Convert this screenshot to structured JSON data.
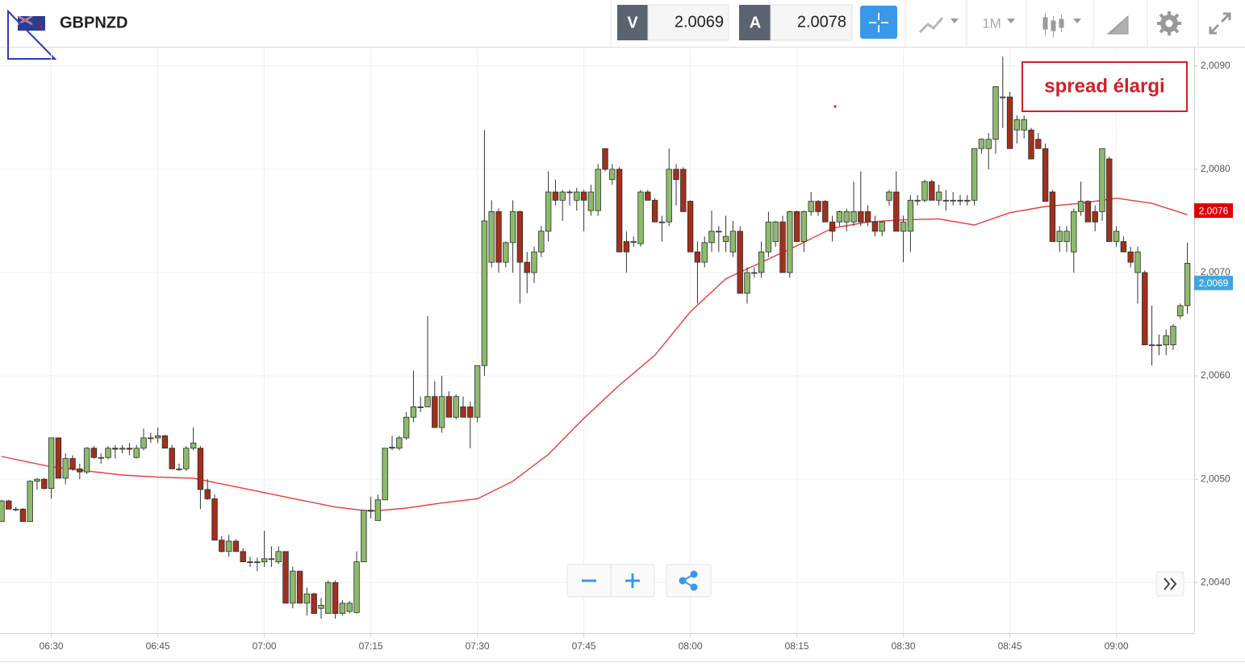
{
  "header": {
    "symbol": "GBPNZD",
    "bid_label": "V",
    "bid": "2.0069",
    "ask_label": "A",
    "ask": "2.0078",
    "timeframe": "1M"
  },
  "chart_data": {
    "type": "candlestick",
    "x": [
      "06:23",
      "06:24",
      "06:25",
      "06:26",
      "06:27",
      "06:28",
      "06:29",
      "06:30",
      "06:31",
      "06:32",
      "06:33",
      "06:34",
      "06:35",
      "06:36",
      "06:37",
      "06:38",
      "06:39",
      "06:40",
      "06:41",
      "06:42",
      "06:43",
      "06:44",
      "06:45",
      "06:46",
      "06:47",
      "06:48",
      "06:49",
      "06:50",
      "06:51",
      "06:52",
      "06:53",
      "06:54",
      "06:55",
      "06:56",
      "06:57",
      "06:58",
      "06:59",
      "07:00",
      "07:01",
      "07:02",
      "07:03",
      "07:04",
      "07:05",
      "07:06",
      "07:07",
      "07:08",
      "07:09",
      "07:10",
      "07:11",
      "07:12",
      "07:13",
      "07:14",
      "07:15",
      "07:16",
      "07:17",
      "07:18",
      "07:19",
      "07:20",
      "07:21",
      "07:22",
      "07:23",
      "07:24",
      "07:25",
      "07:26",
      "07:27",
      "07:28",
      "07:29",
      "07:30",
      "07:31",
      "07:32",
      "07:33",
      "07:34",
      "07:35",
      "07:36",
      "07:37",
      "07:38",
      "07:39",
      "07:40",
      "07:41",
      "07:42",
      "07:43",
      "07:44",
      "07:45",
      "07:46",
      "07:47",
      "07:48",
      "07:49",
      "07:50",
      "07:51",
      "07:52",
      "07:53",
      "07:54",
      "07:55",
      "07:56",
      "07:57",
      "07:58",
      "07:59",
      "08:00",
      "08:01",
      "08:02",
      "08:03",
      "08:04",
      "08:05",
      "08:06",
      "08:07",
      "08:08",
      "08:09",
      "08:10",
      "08:11",
      "08:12",
      "08:13",
      "08:14",
      "08:15",
      "08:16",
      "08:17",
      "08:18",
      "08:19",
      "08:20",
      "08:21",
      "08:22",
      "08:23",
      "08:24",
      "08:25",
      "08:26",
      "08:27",
      "08:28",
      "08:29",
      "08:30",
      "08:31",
      "08:32",
      "08:33",
      "08:34",
      "08:35",
      "08:36",
      "08:37",
      "08:38",
      "08:39",
      "08:40",
      "08:41",
      "08:42",
      "08:43",
      "08:44",
      "08:45",
      "08:46",
      "08:47",
      "08:48",
      "08:49",
      "08:50",
      "08:51",
      "08:52",
      "08:53",
      "08:54",
      "08:55",
      "08:56",
      "08:57",
      "08:58",
      "08:59",
      "09:00",
      "09:01",
      "09:02",
      "09:03",
      "09:04",
      "09:05",
      "09:06",
      "09:07",
      "09:08",
      "09:09",
      "09:10"
    ],
    "open": [
      2.00459,
      2.00479,
      2.00471,
      2.00471,
      2.00459,
      2.00498,
      2.005,
      2.00491,
      2.0054,
      2.00501,
      2.0052,
      2.0051,
      2.00507,
      2.0053,
      2.00521,
      2.00521,
      2.0053,
      2.00529,
      2.0053,
      2.00521,
      2.0053,
      2.0054,
      2.0054,
      2.00542,
      2.0053,
      2.0051,
      2.0051,
      2.0053,
      2.0053,
      2.0049,
      2.00481,
      2.00441,
      2.0043,
      2.0044,
      2.0043,
      2.0042,
      2.0042,
      2.0042,
      2.00423,
      2.0042,
      2.0043,
      2.0038,
      2.00411,
      2.0038,
      2.00389,
      2.00375,
      2.0037,
      2.004,
      2.0037,
      2.00372,
      2.00371,
      2.0042,
      2.0047,
      2.0046,
      2.0048,
      2.0053,
      2.0053,
      2.0054,
      2.0056,
      2.0057,
      2.0057,
      2.0058,
      2.0055,
      2.0058,
      2.0056,
      2.0057,
      2.0057,
      2.0056,
      2.0061,
      2.0071,
      2.00759,
      2.0071,
      2.00729,
      2.00759,
      2.0071,
      2.007,
      2.0072,
      2.0074,
      2.00778,
      2.0077,
      2.00778,
      2.0077,
      2.00778,
      2.0076,
      2.0076,
      2.0082,
      2.0079,
      2.008,
      2.0073,
      2.0073,
      2.00728,
      2.00778,
      2.0077,
      2.00749,
      2.00749,
      2.008,
      2.008,
      2.00769,
      2.0072,
      2.0071,
      2.00729,
      2.0074,
      2.0073,
      2.0072,
      2.0074,
      2.0068,
      2.007,
      2.007,
      2.0072,
      2.0073,
      2.00749,
      2.007,
      2.00759,
      2.0073,
      2.00759,
      2.00769,
      2.00769,
      2.00749,
      2.00749,
      2.00749,
      2.00749,
      2.00759,
      2.00759,
      2.00749,
      2.0074,
      2.0077,
      2.00778,
      2.0074,
      2.0074,
      2.0077,
      2.0077,
      2.00788,
      2.0077,
      2.0077,
      2.0077,
      2.0077,
      2.0077,
      2.0077,
      2.0082,
      2.0082,
      2.00829,
      2.0087,
      2.0087,
      2.00838,
      2.00838,
      2.00838,
      2.00829,
      2.0082,
      2.00778,
      2.0073,
      2.0073,
      2.0072,
      2.00759,
      2.00769,
      2.00759,
      2.00759,
      2.0081,
      2.0073,
      2.0073,
      2.0072,
      2.007,
      2.007,
      2.0063,
      2.0063,
      2.0063,
      2.0063,
      2.00658,
      2.00668
    ],
    "high": [
      2.0048,
      2.0048,
      2.00473,
      2.00472,
      2.00499,
      2.00501,
      2.00501,
      2.0054,
      2.0054,
      2.00525,
      2.00523,
      2.00515,
      2.00531,
      2.00532,
      2.00525,
      2.00532,
      2.00533,
      2.00533,
      2.00535,
      2.00533,
      2.00549,
      2.00545,
      2.0055,
      2.00543,
      2.00533,
      2.00515,
      2.00532,
      2.0055,
      2.00532,
      2.005,
      2.00485,
      2.00445,
      2.00446,
      2.00442,
      2.00433,
      2.00425,
      2.00424,
      2.0045,
      2.00435,
      2.00435,
      2.0043,
      2.00415,
      2.00411,
      2.00395,
      2.0039,
      2.00385,
      2.00402,
      2.00402,
      2.00383,
      2.00382,
      2.0043,
      2.0047,
      2.00483,
      2.00485,
      2.0053,
      2.00542,
      2.00542,
      2.00565,
      2.00605,
      2.0058,
      2.00658,
      2.00595,
      2.006,
      2.00585,
      2.00582,
      2.0058,
      2.00575,
      2.0061,
      2.00838,
      2.0077,
      2.00762,
      2.0073,
      2.0077,
      2.0076,
      2.0072,
      2.00725,
      2.00745,
      2.00798,
      2.0079,
      2.0078,
      2.0078,
      2.00782,
      2.0078,
      2.00785,
      2.00805,
      2.0082,
      2.00805,
      2.00802,
      2.0074,
      2.00735,
      2.0078,
      2.0078,
      2.00772,
      2.00755,
      2.0082,
      2.00805,
      2.00802,
      2.0077,
      2.0073,
      2.00735,
      2.0076,
      2.00745,
      2.00755,
      2.0075,
      2.00745,
      2.00705,
      2.00705,
      2.0073,
      2.00759,
      2.0075,
      2.00755,
      2.0076,
      2.0076,
      2.0076,
      2.00778,
      2.0077,
      2.0077,
      2.00755,
      2.0076,
      2.00762,
      2.00788,
      2.00798,
      2.00765,
      2.00755,
      2.0075,
      2.0078,
      2.00798,
      2.00755,
      2.00775,
      2.00775,
      2.0079,
      2.0079,
      2.00785,
      2.0078,
      2.00778,
      2.00775,
      2.00775,
      2.0082,
      2.0083,
      2.00835,
      2.0088,
      2.00909,
      2.00875,
      2.00852,
      2.00852,
      2.0084,
      2.00835,
      2.00825,
      2.0078,
      2.00745,
      2.00745,
      2.00762,
      2.00788,
      2.0077,
      2.00765,
      2.0082,
      2.00812,
      2.00745,
      2.00735,
      2.00725,
      2.00725,
      2.00702,
      2.00668,
      2.0064,
      2.00645,
      2.0065,
      2.0067,
      2.00729
    ],
    "low": [
      2.00459,
      2.00471,
      2.00469,
      2.00459,
      2.00459,
      2.0049,
      2.0049,
      2.00481,
      2.00501,
      2.00495,
      2.00508,
      2.005,
      2.00505,
      2.0052,
      2.00515,
      2.00519,
      2.0052,
      2.00525,
      2.00523,
      2.0052,
      2.00528,
      2.00535,
      2.00535,
      2.0053,
      2.0051,
      2.00508,
      2.00508,
      2.00528,
      2.00471,
      2.0048,
      2.00441,
      2.00429,
      2.00425,
      2.0043,
      2.0042,
      2.00415,
      2.00411,
      2.00415,
      2.00415,
      2.00418,
      2.0038,
      2.00375,
      2.0038,
      2.00368,
      2.0037,
      2.00365,
      2.0037,
      2.00365,
      2.00368,
      2.0037,
      2.0037,
      2.0042,
      2.00462,
      2.0046,
      2.0048,
      2.00528,
      2.00528,
      2.00538,
      2.00555,
      2.00565,
      2.0057,
      2.0055,
      2.00545,
      2.0056,
      2.00558,
      2.0056,
      2.0053,
      2.00555,
      2.006,
      2.00705,
      2.007,
      2.00705,
      2.007,
      2.0067,
      2.0068,
      2.0069,
      2.00715,
      2.0073,
      2.00765,
      2.0075,
      2.00765,
      2.0076,
      2.0074,
      2.00755,
      2.00755,
      2.00798,
      2.00785,
      2.0072,
      2.007,
      2.00725,
      2.00725,
      2.0077,
      2.00749,
      2.0073,
      2.00745,
      2.00765,
      2.00759,
      2.0072,
      2.0067,
      2.00705,
      2.0072,
      2.0072,
      2.0072,
      2.00715,
      2.0068,
      2.0067,
      2.00695,
      2.00695,
      2.00715,
      2.00725,
      2.007,
      2.00695,
      2.0073,
      2.0072,
      2.00755,
      2.00755,
      2.00749,
      2.0073,
      2.00745,
      2.0074,
      2.00745,
      2.00745,
      2.00745,
      2.00735,
      2.00735,
      2.00765,
      2.0074,
      2.0071,
      2.0072,
      2.00765,
      2.00768,
      2.0077,
      2.00765,
      2.0076,
      2.00765,
      2.00765,
      2.00765,
      2.00765,
      2.00815,
      2.008,
      2.00815,
      2.0084,
      2.0082,
      2.00825,
      2.0083,
      2.0081,
      2.0082,
      2.00769,
      2.0073,
      2.0072,
      2.0072,
      2.007,
      2.00755,
      2.00749,
      2.0074,
      2.0075,
      2.0073,
      2.00725,
      2.0072,
      2.00705,
      2.0067,
      2.0063,
      2.0061,
      2.0062,
      2.0062,
      2.00625,
      2.00655,
      2.0066
    ],
    "close": [
      2.00479,
      2.00471,
      2.00471,
      2.00459,
      2.00498,
      2.005,
      2.00491,
      2.0054,
      2.00501,
      2.0052,
      2.0051,
      2.00507,
      2.0053,
      2.00521,
      2.00521,
      2.0053,
      2.00529,
      2.0053,
      2.00529,
      2.0053,
      2.0054,
      2.0054,
      2.00542,
      2.0053,
      2.0051,
      2.0051,
      2.0053,
      2.00535,
      2.0049,
      2.00481,
      2.00441,
      2.0043,
      2.0044,
      2.0043,
      2.0042,
      2.0042,
      2.0042,
      2.00423,
      2.00423,
      2.0043,
      2.0038,
      2.00411,
      2.0038,
      2.00389,
      2.0037,
      2.00378,
      2.004,
      2.0037,
      2.0038,
      2.0038,
      2.0042,
      2.0047,
      2.0047,
      2.0048,
      2.0053,
      2.00531,
      2.0054,
      2.0056,
      2.0057,
      2.0057,
      2.0058,
      2.0055,
      2.0058,
      2.0056,
      2.0058,
      2.0056,
      2.0056,
      2.0061,
      2.0075,
      2.00759,
      2.0071,
      2.00729,
      2.00759,
      2.0071,
      2.007,
      2.0072,
      2.0074,
      2.00778,
      2.0077,
      2.00778,
      2.00778,
      2.00778,
      2.0077,
      2.00778,
      2.008,
      2.008,
      2.008,
      2.0072,
      2.0072,
      2.0073,
      2.00778,
      2.0077,
      2.00749,
      2.00749,
      2.008,
      2.0079,
      2.00759,
      2.0072,
      2.0071,
      2.00729,
      2.0074,
      2.0074,
      2.00735,
      2.0074,
      2.0068,
      2.007,
      2.007,
      2.0072,
      2.00749,
      2.00749,
      2.007,
      2.00759,
      2.0073,
      2.00759,
      2.00769,
      2.00759,
      2.00749,
      2.0074,
      2.00759,
      2.00759,
      2.00759,
      2.00749,
      2.00749,
      2.0074,
      2.00749,
      2.00778,
      2.0074,
      2.00749,
      2.0077,
      2.0077,
      2.00788,
      2.0077,
      2.00778,
      2.0077,
      2.0077,
      2.0077,
      2.0077,
      2.0082,
      2.00829,
      2.00829,
      2.0088,
      2.0087,
      2.0082,
      2.00848,
      2.00848,
      2.0081,
      2.0082,
      2.00769,
      2.0073,
      2.0074,
      2.0074,
      2.00759,
      2.00769,
      2.00749,
      2.00749,
      2.0082,
      2.0073,
      2.0074,
      2.0072,
      2.0071,
      2.0072,
      2.0063,
      2.0063,
      2.0063,
      2.00639,
      2.00648,
      2.00668,
      2.00709
    ],
    "up_color": "#8dbb6c",
    "down_color": "#a0301c",
    "ma": {
      "color": "#e83a3a",
      "x": [
        "06:23",
        "06:30",
        "06:35",
        "06:40",
        "06:45",
        "06:50",
        "06:55",
        "07:00",
        "07:05",
        "07:10",
        "07:15",
        "07:20",
        "07:25",
        "07:30",
        "07:35",
        "07:40",
        "07:45",
        "07:50",
        "07:55",
        "08:00",
        "08:05",
        "08:10",
        "08:15",
        "08:20",
        "08:25",
        "08:30",
        "08:35",
        "08:40",
        "08:45",
        "08:50",
        "08:55",
        "09:00",
        "09:05",
        "09:10"
      ],
      "values": [
        2.00522,
        2.00512,
        2.00508,
        2.00504,
        2.00502,
        2.00501,
        2.00494,
        2.00487,
        2.0048,
        2.00473,
        2.00469,
        2.00472,
        2.00477,
        2.00481,
        2.00498,
        2.00524,
        2.00559,
        2.00591,
        2.0062,
        2.00662,
        2.00694,
        2.0071,
        2.00726,
        2.00743,
        2.00749,
        2.00751,
        2.00752,
        2.00746,
        2.00758,
        2.00764,
        2.00767,
        2.00772,
        2.00767,
        2.00756
      ]
    },
    "ylim": [
      2.00351,
      2.00917
    ],
    "yticks": [
      {
        "value": 2.004,
        "label": "2,0040"
      },
      {
        "value": 2.005,
        "label": "2,0050"
      },
      {
        "value": 2.006,
        "label": "2,0060"
      },
      {
        "value": 2.007,
        "label": "2,0070"
      },
      {
        "value": 2.008,
        "label": "2,0080"
      },
      {
        "value": 2.009,
        "label": "2,0090"
      }
    ],
    "xticks": [
      "06:30",
      "06:45",
      "07:00",
      "07:15",
      "07:30",
      "07:45",
      "08:00",
      "08:15",
      "08:30",
      "08:45",
      "09:00"
    ],
    "grid": true,
    "price_tags": [
      {
        "value": 2.0076,
        "label": "2,0076",
        "color": "#e00000"
      },
      {
        "value": 2.0069,
        "label": "2,0069",
        "color": "#3ea6e0"
      }
    ],
    "annotation": "spread élargi"
  }
}
